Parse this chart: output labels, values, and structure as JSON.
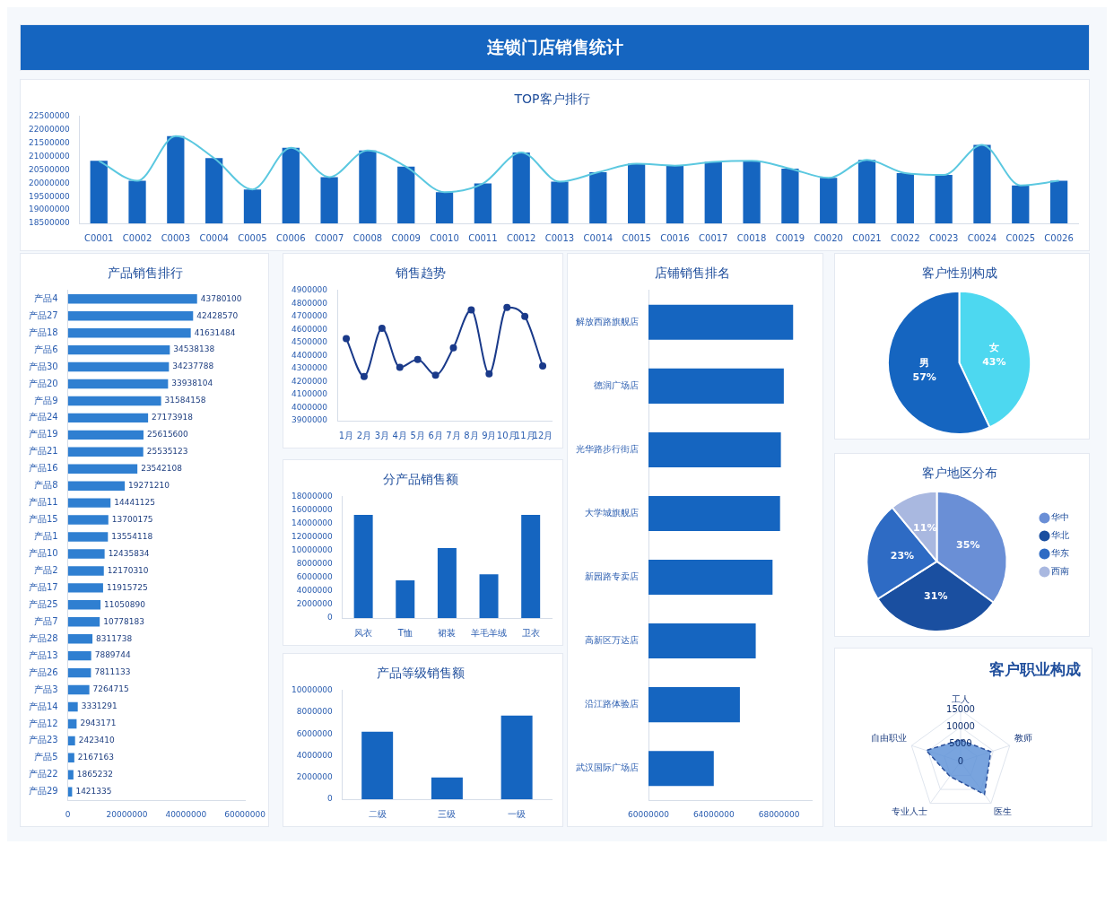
{
  "chart_data": [
    {
      "type": "other",
      "title": "连锁门店销售统计",
      "color": "#1565c0"
    },
    {
      "type": "bar",
      "title": "TOP客户排行",
      "categories": [
        "C0001",
        "C0002",
        "C0003",
        "C0004",
        "C0005",
        "C0006",
        "C0007",
        "C0008",
        "C0009",
        "C0010",
        "C0011",
        "C0012",
        "C0013",
        "C0014",
        "C0015",
        "C0016",
        "C0017",
        "C0018",
        "C0019",
        "C0020",
        "C0021",
        "C0022",
        "C0023",
        "C0024",
        "C0025",
        "C0026"
      ],
      "series": [
        {
          "type": "bar",
          "color": "#1565c0",
          "values": [
            20840000,
            20090000,
            21760000,
            20940000,
            19770000,
            21330000,
            20230000,
            21230000,
            20620000,
            19670000,
            19990000,
            21150000,
            20060000,
            20410000,
            20730000,
            20660000,
            20800000,
            20840000,
            20550000,
            20200000,
            20870000,
            20380000,
            20310000,
            21440000,
            19920000,
            20090000
          ]
        },
        {
          "type": "line",
          "color": "#5bc8e0",
          "values": [
            20840000,
            20090000,
            21760000,
            20940000,
            19770000,
            21330000,
            20230000,
            21230000,
            20620000,
            19670000,
            19990000,
            21150000,
            20060000,
            20410000,
            20730000,
            20660000,
            20800000,
            20840000,
            20550000,
            20200000,
            20870000,
            20380000,
            20310000,
            21440000,
            19920000,
            20090000
          ]
        }
      ],
      "ylim": [
        18500000,
        22500000
      ],
      "yticks": [
        18500000,
        19000000,
        19500000,
        20000000,
        20500000,
        21000000,
        21500000,
        22000000,
        22500000
      ]
    },
    {
      "type": "bar",
      "orientation": "horizontal",
      "title": "产品销售排行",
      "categories": [
        "产品4",
        "产品27",
        "产品18",
        "产品6",
        "产品30",
        "产品20",
        "产品9",
        "产品24",
        "产品19",
        "产品21",
        "产品16",
        "产品8",
        "产品11",
        "产品15",
        "产品1",
        "产品10",
        "产品2",
        "产品17",
        "产品25",
        "产品7",
        "产品28",
        "产品13",
        "产品26",
        "产品3",
        "产品14",
        "产品12",
        "产品23",
        "产品5",
        "产品22",
        "产品29"
      ],
      "values": [
        43780100,
        42428570,
        41631484,
        34538138,
        34237788,
        33938104,
        31584158,
        27173918,
        25615600,
        25535123,
        23542108,
        19271210,
        14441125,
        13700175,
        13554118,
        12435834,
        12170310,
        11915725,
        11050890,
        10778183,
        8311738,
        7889744,
        7811133,
        7264715,
        3331291,
        2943171,
        2423410,
        2167163,
        1865232,
        1421335
      ],
      "color": "#2f7fd1",
      "data_labels": true,
      "xlim": [
        0,
        60000000
      ],
      "xticks": [
        0,
        20000000,
        40000000,
        60000000
      ]
    },
    {
      "type": "line",
      "title": "销售趋势",
      "categories": [
        "1月",
        "2月",
        "3月",
        "4月",
        "5月",
        "6月",
        "7月",
        "8月",
        "9月",
        "10月",
        "11月",
        "12月"
      ],
      "values": [
        4530000,
        4240000,
        4610000,
        4310000,
        4370000,
        4250000,
        4460000,
        4750000,
        4260000,
        4770000,
        4700000,
        4320000
      ],
      "color": "#1a3a8a",
      "marker": "circle",
      "ylim": [
        3900000,
        4900000
      ],
      "yticks": [
        3900000,
        4000000,
        4100000,
        4200000,
        4300000,
        4400000,
        4500000,
        4600000,
        4700000,
        4800000,
        4900000
      ]
    },
    {
      "type": "bar",
      "title": "分产品销售额",
      "categories": [
        "风衣",
        "T恤",
        "裙装",
        "羊毛羊绒",
        "卫衣"
      ],
      "values": [
        15300000,
        5600000,
        10400000,
        6500000,
        15300000
      ],
      "color": "#1565c0",
      "ylim": [
        0,
        18000000
      ],
      "yticks": [
        0,
        2000000,
        4000000,
        6000000,
        8000000,
        10000000,
        12000000,
        14000000,
        16000000,
        18000000
      ]
    },
    {
      "type": "bar",
      "title": "产品等级销售额",
      "categories": [
        "二级",
        "三级",
        "一级"
      ],
      "values": [
        6200000,
        2000000,
        7700000
      ],
      "color": "#1565c0",
      "ylim": [
        0,
        10000000
      ],
      "yticks": [
        0,
        2000000,
        4000000,
        6000000,
        8000000,
        10000000
      ]
    },
    {
      "type": "bar",
      "orientation": "horizontal",
      "title": "店铺销售排名",
      "categories": [
        "解放西路旗舰店",
        "德润广场店",
        "光华路步行街店",
        "大学城旗舰店",
        "新园路专卖店",
        "高新区万达店",
        "沿江路体验店",
        "武汉国际广场店"
      ],
      "values": [
        68860000,
        68290000,
        68110000,
        68060000,
        67600000,
        66570000,
        65600000,
        64000000
      ],
      "color": "#1565c0",
      "xlim": [
        60000000,
        70000000
      ],
      "xticks": [
        60000000,
        64000000,
        68000000
      ]
    },
    {
      "type": "pie",
      "title": "客户性别构成",
      "categories": [
        "女",
        "男"
      ],
      "values": [
        43,
        57
      ],
      "colors": [
        "#4dd8f0",
        "#1565c0"
      ],
      "value_labels": [
        "43%",
        "57%"
      ]
    },
    {
      "type": "pie",
      "title": "客户地区分布",
      "categories": [
        "华中",
        "华北",
        "华东",
        "西南"
      ],
      "values": [
        35,
        31,
        23,
        11
      ],
      "colors": [
        "#6a8fd6",
        "#1a4fa0",
        "#2e6bc4",
        "#a9b8e0"
      ],
      "value_labels": [
        "35%",
        "31%",
        "23%",
        "11%"
      ],
      "legend": "right"
    },
    {
      "type": "radar",
      "title": "客户职业构成",
      "categories": [
        "工人",
        "教师",
        "医生",
        "专业人士",
        "自由职业"
      ],
      "series": [
        {
          "color": "#5b8fd6",
          "values": [
            6300,
            9200,
            11800,
            5300,
            10500
          ],
          "line_style": "dashed"
        }
      ],
      "ylim": [
        0,
        15000
      ],
      "yticks": [
        0,
        5000,
        10000,
        15000
      ],
      "grid": true
    }
  ]
}
